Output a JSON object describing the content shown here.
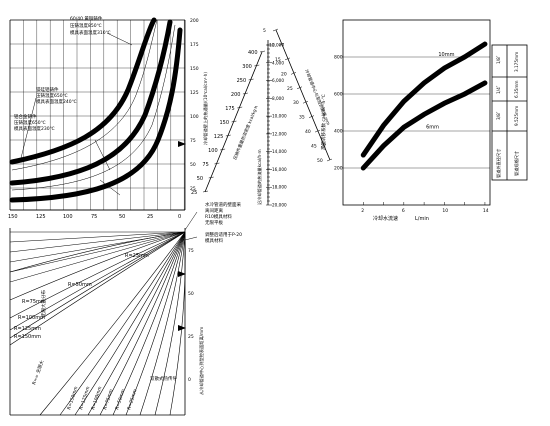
{
  "nomogram": {
    "curve_labels": {
      "top": [
        "60/40 黄铜铸件",
        "压铸温度850℃",
        "模具表面温度310℃"
      ],
      "middle": [
        "镁硅铝铸件",
        "压铸温度650℃",
        "模具表面温度240℃"
      ],
      "bottom": [
        "铝合金铸件",
        "压铸温度650℃",
        "模具表面温度230℃"
      ]
    },
    "left_axis_ticks": [
      "150",
      "125",
      "100",
      "75",
      "50",
      "25",
      "0"
    ],
    "right_axis_ticks": [
      "200",
      "175",
      "150",
      "125",
      "100",
      "75",
      "50",
      "25"
    ],
    "right_axis_title": "冷却管道壁上的热通量/(10³cal/cm²·h)",
    "fan_ticks": [
      "25",
      "50",
      "75",
      "100",
      "125",
      "150",
      "175",
      "200",
      "250",
      "300",
      "400"
    ],
    "fan_axis_title": "压铸件重量热流密度 kcal/kg·h",
    "top_scale_left": [
      "2,000",
      "4,000",
      "6,000",
      "8,000",
      "10,000",
      "12,000",
      "14,000",
      "16,000",
      "18,000",
      "20,000"
    ],
    "top_scale_title": "沿冷却管道的热流量kcal/h·m",
    "top_scale_right": [
      "5",
      "10",
      "15",
      "20",
      "25",
      "30",
      "35",
      "40",
      "45",
      "50"
    ],
    "top_scale_right_title": "冷却管道中心与型腔的距离 mm",
    "bottom_right_axis_title": "从冷却管道中心到型腔表面距离/mm",
    "bottom_right_ticks": [
      "75",
      "50",
      "25",
      "0"
    ],
    "fan_r_labels": [
      "R=25mm",
      "R=50mm",
      "R=75mm",
      "R=100mm",
      "R=125mm",
      "R=150mm"
    ],
    "fan_bottom_labels": [
      "R=25mm",
      "R=50mm",
      "R=75mm",
      "R=100mm",
      "R=125mm",
      "R=150mm",
      "R=∞ 无限大"
    ],
    "annot_line": "无限大热分布",
    "annot_line2": "双散式热传导",
    "note1": [
      "水冷管道的壁面采",
      "离间距离",
      "R10模具材料",
      "无限平板"
    ],
    "note2": [
      "调整后适用于P-20",
      "模具材料"
    ]
  },
  "chart_data": {
    "type": "line",
    "xlabel": "冷却水流速",
    "xunit": "L/min",
    "ylabel": "热量转移系数 cal/cm²·h·℃",
    "x_ticks": [
      2,
      4,
      6,
      8,
      10,
      12,
      14
    ],
    "x_tick_labels": [
      "2",
      "6",
      "10",
      "14"
    ],
    "y_ticks": [
      200,
      400,
      600,
      800
    ],
    "xlim": [
      0,
      14.5
    ],
    "ylim": [
      0,
      1000
    ],
    "series": [
      {
        "name": "10mm",
        "x": [
          2,
          4,
          6,
          8,
          10,
          12,
          14
        ],
        "y": [
          270,
          430,
          560,
          660,
          740,
          800,
          870
        ]
      },
      {
        "name": "6mm",
        "x": [
          2,
          4,
          6,
          8,
          10,
          12,
          14
        ],
        "y": [
          200,
          320,
          420,
          490,
          550,
          600,
          660
        ]
      }
    ],
    "table": {
      "rows": [
        "1/8″",
        "1/4″",
        "3/8″"
      ],
      "values": [
        "3.175mm",
        "6.35mm",
        "9.525mm"
      ],
      "header": "管道规格尺寸",
      "subheader": "管道外直径尺寸"
    }
  }
}
